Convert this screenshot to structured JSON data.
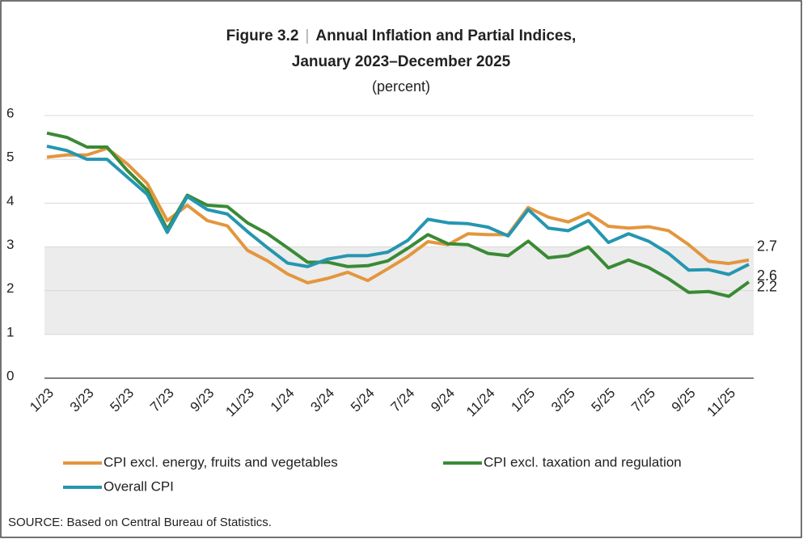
{
  "chart_data": {
    "type": "line",
    "figure_label": "Figure 3.2",
    "separator": "|",
    "title_lines": [
      "Annual Inflation and Partial Indices,",
      "January 2023–December 2025"
    ],
    "subtitle": "(percent)",
    "source": "SOURCE: Based on Central Bureau of Statistics.",
    "categories": [
      "1/23",
      null,
      "3/23",
      null,
      "5/23",
      null,
      "7/23",
      null,
      "9/23",
      null,
      "11/23",
      null,
      "1/24",
      null,
      "3/24",
      null,
      "5/24",
      null,
      "7/24",
      null,
      "9/24",
      null,
      "11/24",
      null,
      "1/25",
      null,
      "3/25",
      null,
      "5/25",
      null,
      "7/25",
      null,
      "9/25",
      null,
      "11/25",
      null
    ],
    "series": [
      {
        "name": "CPI excl. energy, fruits and vegetables",
        "color": "#e3963e",
        "values": [
          5.05,
          5.1,
          5.1,
          5.25,
          4.9,
          4.45,
          3.6,
          3.95,
          3.6,
          3.48,
          2.92,
          2.68,
          2.38,
          2.18,
          2.28,
          2.42,
          2.23,
          2.5,
          2.78,
          3.12,
          3.05,
          3.3,
          3.28,
          3.28,
          3.9,
          3.68,
          3.57,
          3.77,
          3.47,
          3.43,
          3.46,
          3.37,
          3.05,
          2.67,
          2.62,
          2.7
        ]
      },
      {
        "name": "CPI excl. taxation and regulation",
        "color": "#3a8a35",
        "values": [
          5.6,
          5.5,
          5.28,
          5.28,
          4.75,
          4.3,
          3.4,
          4.18,
          3.95,
          3.92,
          3.55,
          3.3,
          2.98,
          2.65,
          2.65,
          2.55,
          2.57,
          2.68,
          2.97,
          3.28,
          3.07,
          3.05,
          2.85,
          2.8,
          3.13,
          2.75,
          2.8,
          3.0,
          2.52,
          2.7,
          2.53,
          2.27,
          1.96,
          1.98,
          1.87,
          2.2
        ]
      },
      {
        "name": "Overall CPI",
        "color": "#2596b0",
        "values": [
          5.3,
          5.2,
          5.0,
          5.0,
          4.6,
          4.2,
          3.33,
          4.15,
          3.85,
          3.75,
          3.35,
          2.98,
          2.63,
          2.55,
          2.72,
          2.8,
          2.8,
          2.88,
          3.15,
          3.63,
          3.55,
          3.53,
          3.45,
          3.25,
          3.85,
          3.43,
          3.37,
          3.6,
          3.1,
          3.3,
          3.13,
          2.85,
          2.47,
          2.48,
          2.37,
          2.6
        ]
      }
    ],
    "shaded_range": [
      1,
      3
    ],
    "ylim": [
      0,
      6
    ],
    "yticks": [
      0,
      1,
      2,
      3,
      4,
      5,
      6
    ],
    "grid": true
  }
}
